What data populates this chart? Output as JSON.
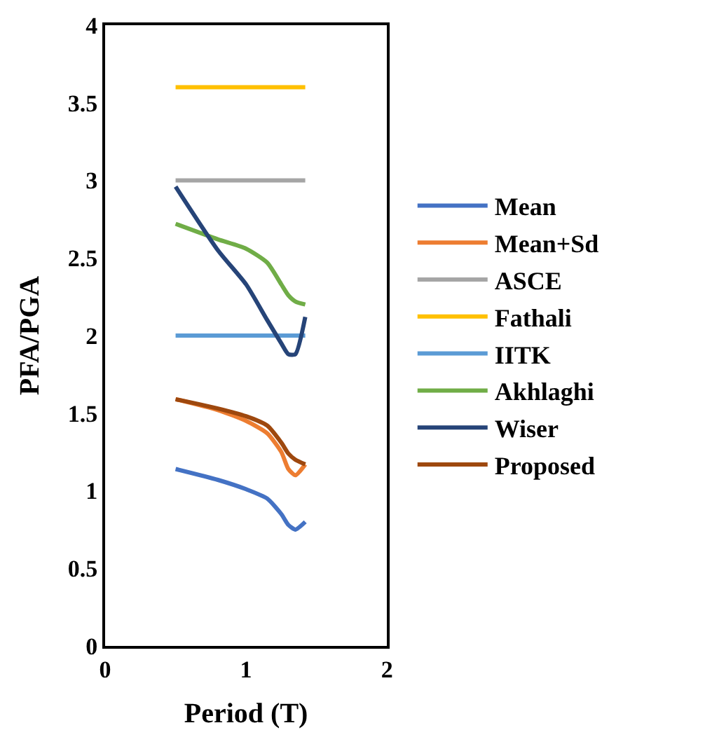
{
  "chart_data": {
    "type": "line",
    "xlabel": "Period (T)",
    "ylabel": "PFA/PGA",
    "xlim": [
      0,
      2
    ],
    "xticks": [
      0,
      1,
      2
    ],
    "ylim": [
      0,
      4
    ],
    "yticks": [
      0,
      0.5,
      1,
      1.5,
      2,
      2.5,
      3,
      3.5,
      4
    ],
    "legend": "right",
    "marker": "none",
    "line_style": "solid",
    "x": [
      0.5,
      0.8,
      1.0,
      1.15,
      1.25,
      1.3,
      1.35,
      1.42
    ],
    "series": [
      {
        "name": "Mean",
        "color": "#4472c4",
        "values": [
          1.14,
          1.07,
          1.01,
          0.95,
          0.85,
          0.78,
          0.75,
          0.8
        ]
      },
      {
        "name": "Mean+Sd",
        "color": "#ed7d31",
        "values": [
          1.59,
          1.52,
          1.45,
          1.37,
          1.25,
          1.14,
          1.1,
          1.17
        ]
      },
      {
        "name": "ASCE",
        "color": "#a5a5a5",
        "values": [
          3.0,
          3.0,
          3.0,
          3.0,
          3.0,
          3.0,
          3.0,
          3.0
        ]
      },
      {
        "name": "Fathali",
        "color": "#ffc000",
        "values": [
          3.6,
          3.6,
          3.6,
          3.6,
          3.6,
          3.6,
          3.6,
          3.6
        ]
      },
      {
        "name": "IITK",
        "color": "#5b9bd5",
        "values": [
          2.0,
          2.0,
          2.0,
          2.0,
          2.0,
          2.0,
          2.0,
          2.0
        ]
      },
      {
        "name": "Akhlaghi",
        "color": "#70ad47",
        "values": [
          2.72,
          2.62,
          2.56,
          2.47,
          2.33,
          2.26,
          2.22,
          2.2
        ]
      },
      {
        "name": "Wiser",
        "color": "#264478",
        "values": [
          2.96,
          2.55,
          2.33,
          2.1,
          1.95,
          1.88,
          1.88,
          2.12
        ]
      },
      {
        "name": "Proposed",
        "color": "#9e480e",
        "values": [
          1.59,
          1.53,
          1.48,
          1.42,
          1.31,
          1.24,
          1.2,
          1.17
        ]
      }
    ]
  }
}
